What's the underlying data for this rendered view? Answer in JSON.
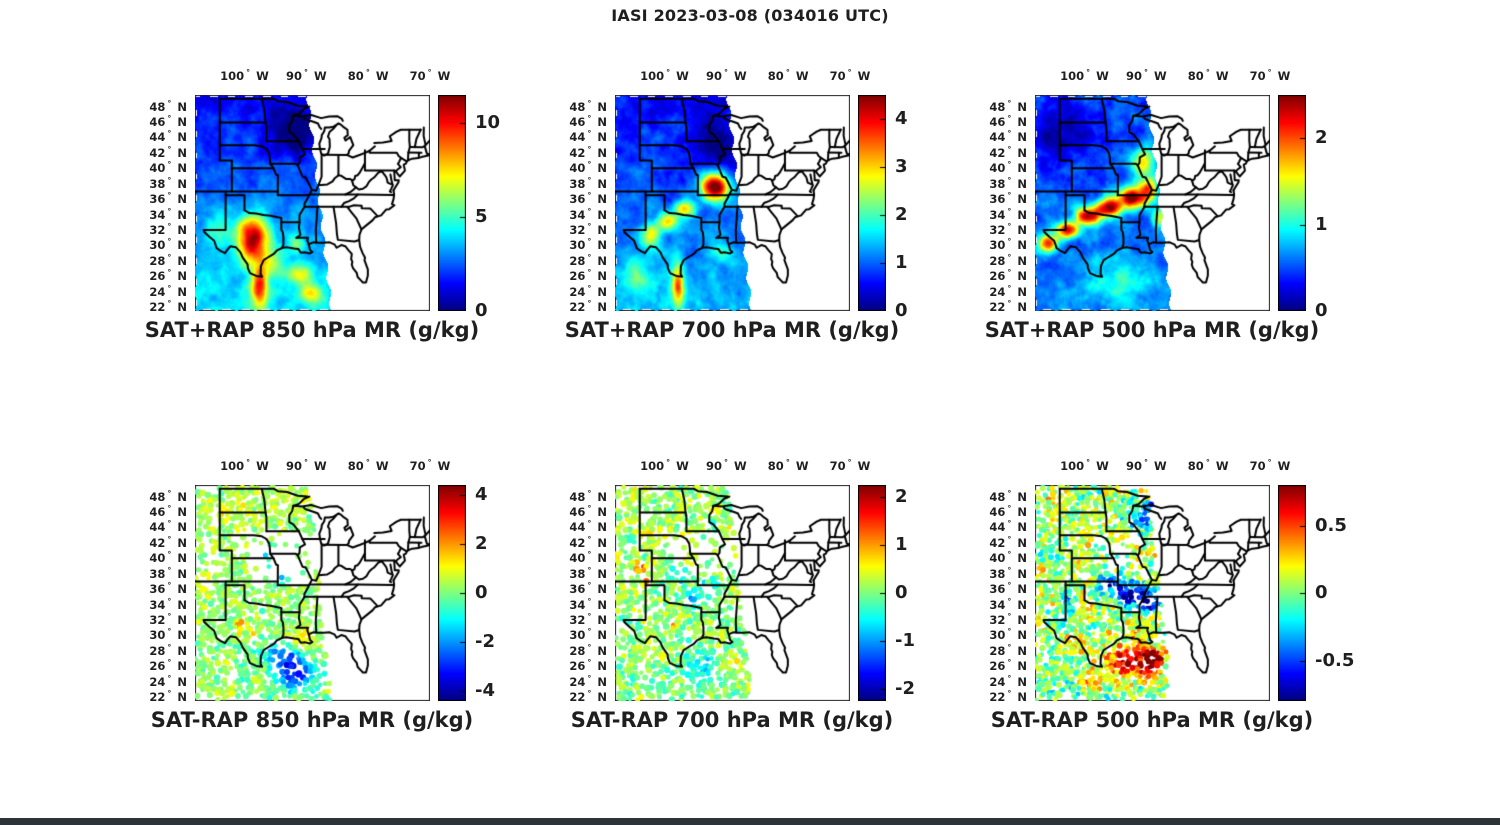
{
  "figure_title": "IASI 2023-03-08 (034016 UTC)",
  "text_color": "#1f1f1f",
  "background_color": "#ffffff",
  "axes": {
    "lon_values": [
      100,
      90,
      80,
      70
    ],
    "lon_suffix": "W",
    "lat_values": [
      48,
      46,
      44,
      42,
      40,
      38,
      36,
      34,
      32,
      30,
      28,
      26,
      24,
      22
    ],
    "lat_suffix": "N",
    "degree": "°"
  },
  "geo_extent": {
    "lon": [
      -108,
      -70
    ],
    "lat": [
      21.5,
      49.5
    ]
  },
  "layout_hints": {
    "grid": "2x3",
    "colorbar_position": "right",
    "lon_labels_side": "top"
  },
  "chart_data": [
    {
      "name": "sat-plus-rap-850",
      "type": "heatmap",
      "title": "SAT+RAP 850 hPa MR (g/kg)",
      "colormap": "jet",
      "units": "g/kg",
      "colorbar": {
        "min": 0,
        "max": 11.5,
        "ticks": [
          0,
          5,
          10
        ]
      },
      "field": {
        "base": 2.8,
        "lat_ref": 35,
        "lat_gradient": -0.1,
        "noise_amp": 1.0,
        "seed": 5,
        "blobs": [
          [
            -92.0,
            44.5,
            -2.2,
            4.0,
            3.2
          ],
          [
            -98.7,
            30.8,
            8.0,
            2.6,
            3.0
          ],
          [
            -97.6,
            24.5,
            6.0,
            1.3,
            2.6
          ],
          [
            -90.8,
            26.3,
            3.5,
            2.0,
            1.4
          ],
          [
            -89.3,
            23.8,
            4.0,
            1.8,
            1.2
          ],
          [
            -95.5,
            27.5,
            2.0,
            2.5,
            2.0
          ],
          [
            -104.5,
            31.5,
            1.5,
            2.5,
            2.5
          ],
          [
            -91.5,
            30.2,
            2.5,
            1.2,
            1.0
          ]
        ]
      },
      "scatter": null
    },
    {
      "name": "sat-plus-rap-700",
      "type": "heatmap",
      "title": "SAT+RAP 700 hPa MR (g/kg)",
      "colormap": "jet",
      "units": "g/kg",
      "colorbar": {
        "min": 0,
        "max": 4.5,
        "ticks": [
          0,
          1,
          2,
          3,
          4
        ]
      },
      "field": {
        "base": 1.0,
        "lat_ref": 35,
        "lat_gradient": -0.03,
        "noise_amp": 0.42,
        "seed": 9,
        "blobs": [
          [
            -91.8,
            37.6,
            3.8,
            2.3,
            1.7
          ],
          [
            -96.5,
            34.8,
            2.0,
            1.6,
            1.1
          ],
          [
            -99.5,
            33.2,
            1.8,
            1.6,
            1.2
          ],
          [
            -102.3,
            31.3,
            1.7,
            1.6,
            1.5
          ],
          [
            -97.8,
            25.0,
            2.3,
            1.0,
            2.8
          ],
          [
            -92.5,
            44.0,
            -0.6,
            3.5,
            3.0
          ],
          [
            -89.8,
            41.5,
            -0.5,
            2.5,
            2.5
          ],
          [
            -104.5,
            26.0,
            0.9,
            2.2,
            2.2
          ],
          [
            -90.6,
            28.8,
            0.8,
            1.8,
            1.2
          ]
        ]
      },
      "scatter": null
    },
    {
      "name": "sat-plus-rap-500",
      "type": "heatmap",
      "title": "SAT+RAP 500 hPa MR (g/kg)",
      "colormap": "jet",
      "units": "g/kg",
      "colorbar": {
        "min": 0,
        "max": 2.5,
        "ticks": [
          0,
          1,
          2
        ]
      },
      "field": {
        "base": 0.55,
        "lat_ref": 35,
        "lat_gradient": -0.004,
        "noise_amp": 0.26,
        "seed": 13,
        "blobs": [
          [
            -103.5,
            44.5,
            -0.42,
            5.0,
            4.5
          ],
          [
            -105.8,
            30.3,
            1.6,
            1.6,
            1.1
          ],
          [
            -102.8,
            32.0,
            1.8,
            1.8,
            1.1
          ],
          [
            -99.3,
            33.8,
            1.9,
            2.0,
            1.2
          ],
          [
            -95.8,
            35.0,
            1.9,
            2.0,
            1.2
          ],
          [
            -92.3,
            36.2,
            2.0,
            2.0,
            1.3
          ],
          [
            -89.6,
            37.2,
            1.5,
            1.5,
            1.6
          ],
          [
            -90.5,
            40.8,
            1.0,
            1.9,
            1.9
          ],
          [
            -95.0,
            25.5,
            0.45,
            5.5,
            3.0
          ],
          [
            -87.8,
            33.5,
            0.9,
            1.3,
            1.5
          ]
        ]
      },
      "scatter": null
    },
    {
      "name": "sat-minus-rap-850",
      "type": "scatter",
      "title": "SAT-RAP 850 hPa MR (g/kg)",
      "colormap": "jet",
      "units": "g/kg",
      "colorbar": {
        "min": -4.4,
        "max": 4.4,
        "ticks": [
          -4,
          -2,
          0,
          2,
          4
        ]
      },
      "field": {
        "base": 0.15,
        "lat_ref": 30,
        "lat_gradient": 0.012,
        "noise_amp": 0.8,
        "seed": 21,
        "blobs": [
          [
            -91.8,
            25.3,
            -3.4,
            3.2,
            2.2
          ],
          [
            -94.5,
            27.5,
            -1.6,
            2.8,
            1.8
          ],
          [
            -94.5,
            37.8,
            -2.2,
            1.8,
            1.2
          ],
          [
            -97.0,
            40.5,
            -1.5,
            1.5,
            1.0
          ],
          [
            -100.5,
            31.3,
            2.6,
            0.8,
            0.7
          ],
          [
            -98.5,
            30.3,
            1.4,
            0.9,
            0.7
          ],
          [
            -99.3,
            38.8,
            1.6,
            0.8,
            0.6
          ],
          [
            -102.0,
            45.5,
            0.6,
            3.0,
            2.0
          ],
          [
            -90.5,
            29.5,
            0.9,
            2.0,
            1.2
          ]
        ]
      },
      "scatter": {
        "radius": 2.8,
        "spacing": 3.7,
        "keep": 0.62,
        "sparse_regions": [
          [
            -99.5,
            -88.5,
            36.5,
            43.5,
            0.1
          ],
          [
            -102,
            -96,
            40.5,
            44,
            0.35
          ],
          [
            -108,
            -102,
            36,
            41,
            0.45
          ]
        ]
      }
    },
    {
      "name": "sat-minus-rap-700",
      "type": "scatter",
      "title": "SAT-RAP 700 hPa MR (g/kg)",
      "colormap": "jet",
      "units": "g/kg",
      "colorbar": {
        "min": -2.25,
        "max": 2.25,
        "ticks": [
          -2,
          -1,
          0,
          1,
          2
        ]
      },
      "field": {
        "base": 0.05,
        "lat_ref": 30,
        "lat_gradient": 0.006,
        "noise_amp": 0.5,
        "seed": 33,
        "blobs": [
          [
            -103.8,
            38.8,
            1.7,
            0.8,
            0.9
          ],
          [
            -102.9,
            37.3,
            1.2,
            0.7,
            0.7
          ],
          [
            -98.8,
            31.6,
            1.9,
            0.5,
            0.5
          ],
          [
            -95.5,
            34.5,
            -1.3,
            1.6,
            1.2
          ],
          [
            -92.6,
            36.3,
            -1.1,
            1.6,
            1.1
          ],
          [
            -97.5,
            37.5,
            -0.9,
            1.3,
            1.0
          ],
          [
            -93.5,
            25.5,
            -0.5,
            3.2,
            2.0
          ],
          [
            -89.3,
            26.3,
            0.8,
            1.6,
            1.0
          ]
        ]
      },
      "scatter": {
        "radius": 2.8,
        "spacing": 3.7,
        "keep": 0.6,
        "sparse_regions": [
          [
            -99.5,
            -89,
            37.5,
            43.5,
            0.16
          ]
        ]
      }
    },
    {
      "name": "sat-minus-rap-500",
      "type": "scatter",
      "title": "SAT-RAP 500 hPa MR (g/kg)",
      "colormap": "jet",
      "units": "g/kg",
      "colorbar": {
        "min": -0.8,
        "max": 0.8,
        "ticks": [
          -0.5,
          0,
          0.5
        ]
      },
      "field": {
        "base": 0.02,
        "lat_ref": 32,
        "lat_gradient": 0.004,
        "noise_amp": 0.3,
        "seed": 41,
        "blobs": [
          [
            -92.7,
            35.3,
            -0.8,
            2.6,
            1.5
          ],
          [
            -89.3,
            34.3,
            -0.65,
            1.6,
            1.3
          ],
          [
            -96.0,
            36.6,
            -0.6,
            2.0,
            1.2
          ],
          [
            -90.8,
            45.3,
            -0.5,
            2.2,
            1.6
          ],
          [
            -88.6,
            46.6,
            -0.35,
            1.6,
            1.1
          ],
          [
            -103.0,
            35.0,
            -0.5,
            1.2,
            1.5
          ],
          [
            -94.0,
            27.5,
            0.5,
            4.5,
            2.6
          ],
          [
            -89.8,
            25.8,
            0.55,
            3.0,
            1.8
          ],
          [
            -98.5,
            23.8,
            0.35,
            2.2,
            1.8
          ],
          [
            -88.9,
            27.2,
            0.6,
            1.6,
            1.1
          ]
        ]
      },
      "scatter": {
        "radius": 2.6,
        "spacing": 3.4,
        "keep": 0.68,
        "sparse_regions": [
          [
            -98.5,
            -90.5,
            38.5,
            43,
            0.3
          ]
        ]
      }
    }
  ]
}
